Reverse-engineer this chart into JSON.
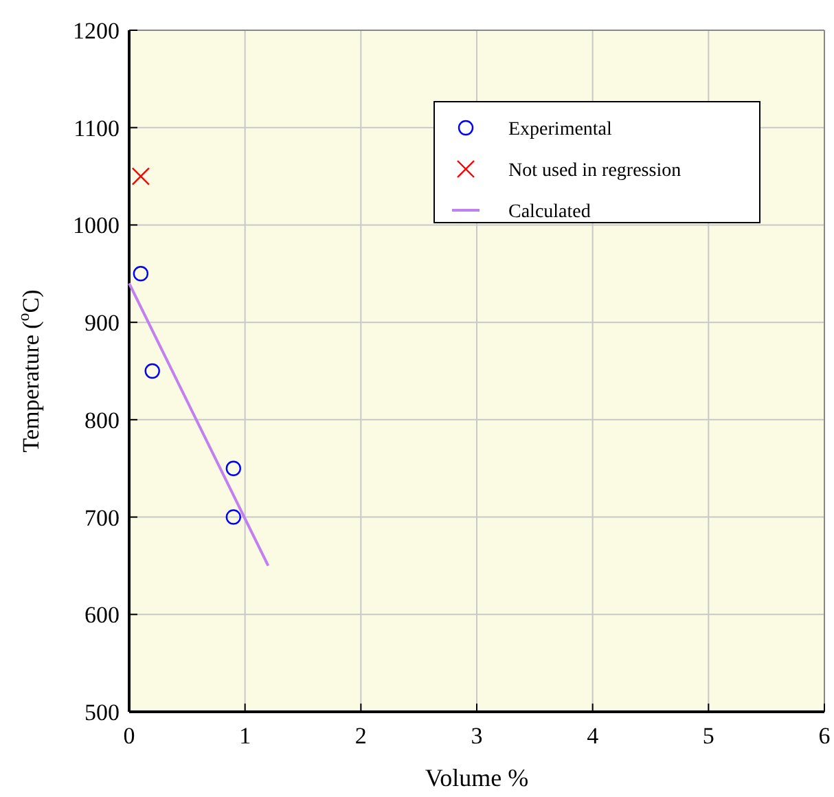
{
  "chart_data": {
    "type": "scatter",
    "xlabel": "Volume %",
    "ylabel": "Temperature  ($^{o}$C)",
    "xlim": [
      0,
      6
    ],
    "ylim": [
      500,
      1200
    ],
    "xticks": [
      0,
      1,
      2,
      3,
      4,
      5,
      6
    ],
    "yticks": [
      500,
      600,
      700,
      800,
      900,
      1000,
      1100,
      1200
    ],
    "grid": true,
    "legend": "top right",
    "series": [
      {
        "name": "Experimental",
        "marker": "circle",
        "color": "#0000ff",
        "x": [
          0.1,
          0.2,
          0.9,
          0.9
        ],
        "values": [
          950,
          850,
          750,
          700
        ]
      },
      {
        "name": "Not used in regression",
        "marker": "cross",
        "color": "#ff0000",
        "x": [
          0.1
        ],
        "values": [
          1050
        ]
      },
      {
        "name": "Calculated",
        "type": "line",
        "marker": "none",
        "line_style": "solid",
        "color": "#c080f0",
        "x": [
          0,
          1.2
        ],
        "values": [
          940,
          650
        ]
      }
    ]
  }
}
